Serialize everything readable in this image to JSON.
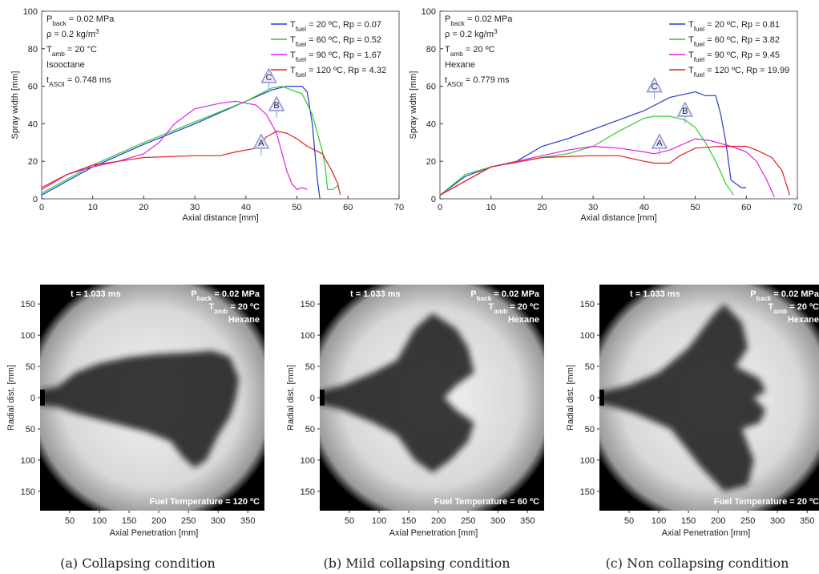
{
  "chart_data": [
    {
      "type": "line",
      "xlabel": "Axial distance [mm]",
      "ylabel": "Spray width [mm]",
      "xlim": [
        0,
        70
      ],
      "ylim": [
        0,
        100
      ],
      "xticks": [
        0,
        10,
        20,
        30,
        40,
        50,
        60,
        70
      ],
      "yticks": [
        0,
        20,
        40,
        60,
        80,
        100
      ],
      "notes": [
        [
          "P",
          {
            "sub": "back"
          },
          " = 0.02 MPa"
        ],
        [
          "ρ = 0.2 kg/m",
          {
            "sup": "3"
          }
        ],
        [
          "T",
          {
            "sub": "amb"
          },
          " = 20 °C"
        ],
        [
          "Isooctane"
        ],
        [
          "t",
          {
            "sub": "ASOI"
          },
          " = 0.748 ms"
        ]
      ],
      "series": [
        {
          "name": [
            "T",
            {
              "sub": "fuel"
            },
            " = 20 ºC, Rp = 0.07"
          ],
          "color": "#1f3bd1",
          "x": [
            0,
            10,
            20,
            30,
            40,
            45,
            48,
            51,
            52,
            53,
            54,
            54.5
          ],
          "values": [
            2,
            17,
            29,
            40,
            52,
            58,
            60,
            60,
            57,
            40,
            10,
            0
          ]
        },
        {
          "name": [
            "T",
            {
              "sub": "fuel"
            },
            " = 60 ºC, Rp = 0.52"
          ],
          "color": "#2ecc2e",
          "x": [
            0,
            10,
            20,
            30,
            40,
            45,
            47,
            49,
            51,
            53,
            55,
            55.5,
            56,
            57,
            58
          ],
          "values": [
            3,
            18,
            30,
            41,
            52,
            59,
            60,
            58,
            56,
            45,
            25,
            18,
            5,
            5,
            7
          ]
        },
        {
          "name": [
            "T",
            {
              "sub": "fuel"
            },
            " = 90 ºC, Rp = 1.67"
          ],
          "color": "#e020e0",
          "x": [
            0,
            5,
            10,
            15,
            20,
            23,
            26,
            30,
            35,
            38,
            40,
            42,
            44,
            46,
            47,
            48,
            49,
            50,
            51,
            52
          ],
          "values": [
            5,
            13,
            17,
            20,
            24,
            30,
            40,
            48,
            51,
            52,
            51,
            50,
            45,
            35,
            25,
            15,
            8,
            5,
            6,
            5
          ]
        },
        {
          "name": [
            "T",
            {
              "sub": "fuel"
            },
            " = 120 ºC, Rp = 4.32"
          ],
          "color": "#e02020",
          "x": [
            0,
            5,
            10,
            15,
            20,
            30,
            35,
            38,
            42,
            44,
            46,
            48,
            50,
            52,
            55,
            57,
            58,
            58.5
          ],
          "values": [
            6,
            13,
            18,
            20,
            22,
            23,
            23,
            25,
            27,
            33,
            36,
            35,
            32,
            28,
            24,
            14,
            8,
            2
          ]
        }
      ],
      "markers": [
        {
          "text": "A",
          "x": 43,
          "y": 27
        },
        {
          "text": "B",
          "x": 46,
          "y": 47
        },
        {
          "text": "C",
          "x": 44.5,
          "y": 62
        }
      ]
    },
    {
      "type": "line",
      "xlabel": "Axial distance [mm]",
      "ylabel": "Spray width [mm]",
      "xlim": [
        0,
        70
      ],
      "ylim": [
        0,
        100
      ],
      "xticks": [
        0,
        10,
        20,
        30,
        40,
        50,
        60,
        70
      ],
      "yticks": [
        0,
        20,
        40,
        60,
        80,
        100
      ],
      "notes": [
        [
          "P",
          {
            "sub": "back"
          },
          " = 0.02 MPa"
        ],
        [
          "ρ = 0.2 kg/m",
          {
            "sup": "3"
          }
        ],
        [
          "T",
          {
            "sub": "amb"
          },
          " = 20 ºC"
        ],
        [
          "Hexane"
        ],
        [
          "t",
          {
            "sub": "ASOI"
          },
          " = 0.779 ms"
        ]
      ],
      "series": [
        {
          "name": [
            "T",
            {
              "sub": "fuel"
            },
            " = 20 ºC, Rp = 0.81"
          ],
          "color": "#1f3bd1",
          "x": [
            0,
            5,
            10,
            15,
            20,
            25,
            30,
            35,
            40,
            45,
            50,
            52,
            54,
            55,
            56,
            57,
            58,
            59,
            60
          ],
          "values": [
            2,
            12,
            17,
            20,
            28,
            32,
            37,
            42,
            47,
            54,
            57,
            55,
            55,
            45,
            30,
            10,
            8,
            6,
            6
          ]
        },
        {
          "name": [
            "T",
            {
              "sub": "fuel"
            },
            " = 60 ºC, Rp = 3.82"
          ],
          "color": "#2ecc2e",
          "x": [
            0,
            5,
            10,
            20,
            25,
            30,
            35,
            40,
            42,
            45,
            48,
            50,
            52,
            54,
            56,
            57.5
          ],
          "values": [
            2,
            13,
            17,
            22,
            24,
            28,
            36,
            43,
            44,
            44,
            42,
            38,
            30,
            20,
            8,
            2
          ]
        },
        {
          "name": [
            "T",
            {
              "sub": "fuel"
            },
            " = 90 ºC, Rp = 9.45"
          ],
          "color": "#e020e0",
          "x": [
            0,
            10,
            20,
            25,
            30,
            35,
            40,
            42,
            45,
            50,
            53,
            57,
            60,
            62,
            64,
            65.5
          ],
          "values": [
            2,
            17,
            23,
            26,
            28,
            27,
            25,
            24,
            26,
            32,
            31,
            28,
            25,
            20,
            10,
            1
          ]
        },
        {
          "name": [
            "T",
            {
              "sub": "fuel"
            },
            " = 120 ºC, Rp = 19.99"
          ],
          "color": "#e02020",
          "x": [
            0,
            10,
            20,
            30,
            35,
            40,
            42,
            45,
            47,
            50,
            55,
            60,
            62,
            65,
            67,
            68.5
          ],
          "values": [
            2,
            17,
            22,
            23,
            23,
            20,
            19,
            19,
            23,
            27,
            28,
            28,
            26,
            22,
            15,
            2
          ]
        }
      ],
      "markers": [
        {
          "text": "A",
          "x": 43,
          "y": 27
        },
        {
          "text": "B",
          "x": 48,
          "y": 44
        },
        {
          "text": "C",
          "x": 42,
          "y": 57
        }
      ]
    },
    {
      "type": "image",
      "xlabel": "Axial Penetration [mm]",
      "ylabel": "Radial dist. [mm]",
      "xlim": [
        0,
        378
      ],
      "ylim": [
        -181,
        181
      ],
      "xticks": [
        50,
        100,
        150,
        200,
        250,
        300,
        350
      ],
      "yticks": [
        150,
        100,
        50,
        0,
        {
          "value": -50,
          "label": "50"
        },
        {
          "value": -100,
          "label": "100"
        },
        {
          "value": -150,
          "label": "150"
        }
      ],
      "time_label": "t = 1.033 ms",
      "notes": [
        [
          "P",
          {
            "sub": "back"
          },
          " = 0.02 MPa"
        ],
        [
          "T",
          {
            "sub": "amb"
          },
          " = 20 ºC"
        ],
        [
          "Hexane"
        ]
      ],
      "footer": "Fuel Temperature = 120 ºC",
      "caption": "(a) Collapsing condition"
    },
    {
      "type": "image",
      "xlabel": "Axial Penetration [mm]",
      "ylabel": "Radial dist. [mm]",
      "xlim": [
        0,
        378
      ],
      "ylim": [
        -181,
        181
      ],
      "xticks": [
        50,
        100,
        150,
        200,
        250,
        300,
        350
      ],
      "yticks": [
        150,
        100,
        50,
        0,
        {
          "value": -50,
          "label": "50"
        },
        {
          "value": -100,
          "label": "100"
        },
        {
          "value": -150,
          "label": "150"
        }
      ],
      "time_label": "t = 1.033 ms",
      "notes": [
        [
          "P",
          {
            "sub": "back"
          },
          " = 0.02 MPa"
        ],
        [
          "T",
          {
            "sub": "amb"
          },
          " = 20 ºC"
        ],
        [
          "Hexane"
        ]
      ],
      "footer": "Fuel Temperature = 60 ºC",
      "caption": "(b) Mild collapsing condition"
    },
    {
      "type": "image",
      "xlabel": "Axial Penetration [mm]",
      "ylabel": "Radial dist. [mm]",
      "xlim": [
        0,
        378
      ],
      "ylim": [
        -181,
        181
      ],
      "xticks": [
        50,
        100,
        150,
        200,
        250,
        300,
        350
      ],
      "yticks": [
        150,
        100,
        50,
        0,
        {
          "value": -50,
          "label": "50"
        },
        {
          "value": -100,
          "label": "100"
        },
        {
          "value": -150,
          "label": "150"
        }
      ],
      "time_label": "t = 1.033 ms",
      "notes": [
        [
          "P",
          {
            "sub": "back"
          },
          " = 0.02 MPa"
        ],
        [
          "T",
          {
            "sub": "amb"
          },
          " = 20 ºC"
        ],
        [
          "Hexane"
        ]
      ],
      "footer": "Fuel Temperature = 20 ºC",
      "caption": "(c) Non collapsing condition"
    }
  ]
}
